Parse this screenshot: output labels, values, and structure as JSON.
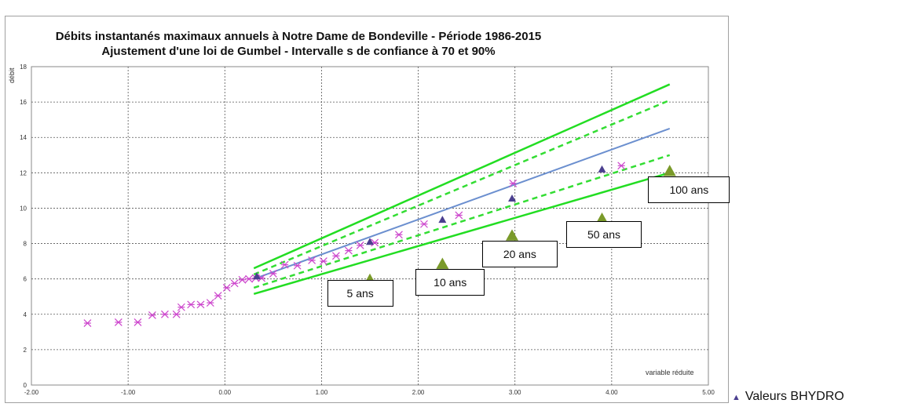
{
  "chart_data": {
    "type": "scatter",
    "title": "Débits instantanés maximaux annuels à Notre Dame de Bondeville  - Période 1986-2015",
    "subtitle": "Ajustement d'une loi de Gumbel - Intervalle s de confiance à 70 et 90%",
    "xlabel": "variable réduite",
    "ylabel": "débit",
    "xlim": [
      -2,
      5
    ],
    "ylim": [
      0,
      18
    ],
    "x_ticks": [
      "-2.00",
      "-1.00",
      "0.00",
      "1.00",
      "2.00",
      "3.00",
      "4.00",
      "5.00"
    ],
    "y_ticks": [
      "0",
      "2",
      "4",
      "6",
      "8",
      "10",
      "12",
      "14",
      "16",
      "18"
    ],
    "grid": true,
    "legend_position": "bottom-right outside",
    "series": [
      {
        "name": "",
        "kind": "observed",
        "color": "#cc44cc",
        "marker": "asterisk",
        "x": [
          -1.42,
          -1.1,
          -0.9,
          -0.75,
          -0.62,
          -0.5,
          -0.45,
          -0.35,
          -0.25,
          -0.15,
          -0.07,
          0.02,
          0.1,
          0.18,
          0.25,
          0.32,
          0.38,
          0.5,
          0.62,
          0.75,
          0.9,
          1.02,
          1.15,
          1.28,
          1.4,
          1.55,
          1.8,
          2.06,
          2.42,
          2.98,
          4.1
        ],
        "y": [
          3.5,
          3.55,
          3.55,
          3.95,
          4.0,
          4.0,
          4.4,
          4.55,
          4.55,
          4.65,
          5.05,
          5.5,
          5.75,
          5.95,
          6.0,
          6.05,
          6.05,
          6.3,
          6.8,
          6.75,
          7.05,
          7.0,
          7.3,
          7.6,
          7.9,
          8.05,
          8.5,
          9.1,
          9.6,
          11.4,
          12.4
        ]
      },
      {
        "name": "Valeurs  BHYDRO",
        "kind": "reference",
        "color": "#4b3f8f",
        "marker": "triangle",
        "x": [
          0.33,
          1.5,
          2.25,
          2.97,
          3.9
        ],
        "y": [
          6.15,
          8.1,
          9.35,
          10.55,
          12.2
        ]
      },
      {
        "name": "",
        "kind": "return-period",
        "color": "#7a9a2a",
        "marker": "triangle-large",
        "x": [
          1.5,
          2.25,
          2.97,
          3.9,
          4.6
        ],
        "y": [
          5.95,
          6.85,
          8.45,
          9.4,
          12.1
        ]
      },
      {
        "name": "",
        "kind": "fit",
        "color": "#6b8fcf",
        "style": "solid",
        "x": [
          0.3,
          4.6
        ],
        "y": [
          6.0,
          14.5
        ]
      },
      {
        "name": "",
        "kind": "ci70-upper",
        "color": "#33dd33",
        "style": "dashed",
        "x": [
          0.3,
          4.6
        ],
        "y": [
          6.25,
          16.1
        ]
      },
      {
        "name": "",
        "kind": "ci70-lower",
        "color": "#33dd33",
        "style": "dashed",
        "x": [
          0.3,
          4.6
        ],
        "y": [
          5.5,
          13.0
        ]
      },
      {
        "name": "",
        "kind": "ci90-upper",
        "color": "#22dd22",
        "style": "solid",
        "x": [
          0.3,
          4.6
        ],
        "y": [
          6.6,
          17.0
        ]
      },
      {
        "name": "",
        "kind": "ci90-lower",
        "color": "#22dd22",
        "style": "solid",
        "x": [
          0.3,
          4.6
        ],
        "y": [
          5.15,
          12.0
        ]
      }
    ],
    "annotations": [
      {
        "text": "5 ans",
        "x": 1.4,
        "y": 5.2
      },
      {
        "text": "10 ans",
        "x": 2.33,
        "y": 5.8
      },
      {
        "text": "20 ans",
        "x": 3.05,
        "y": 7.4
      },
      {
        "text": "50 ans",
        "x": 3.92,
        "y": 8.5
      },
      {
        "text": "100 ans",
        "x": 4.8,
        "y": 11.05
      }
    ]
  },
  "legend": {
    "label": "Valeurs  BHYDRO",
    "marker": "triangle"
  }
}
